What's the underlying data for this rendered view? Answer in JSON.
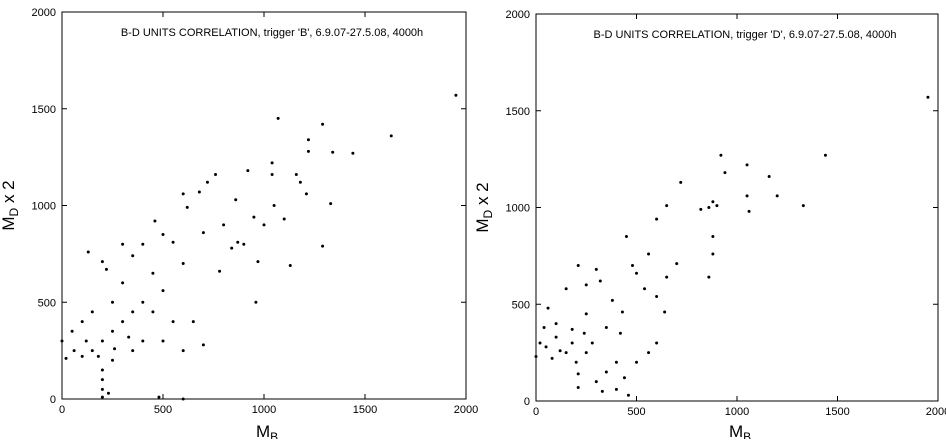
{
  "chart_data": [
    {
      "type": "scatter",
      "title": "B-D UNITS CORRELATION, trigger 'B', 6.9.07-27.5.08, 4000h",
      "xlabel": {
        "main": "M",
        "sub": "B"
      },
      "ylabel": {
        "main": "M",
        "sub": "D",
        "suffix": " x 2"
      },
      "xlim": [
        0,
        2000
      ],
      "ylim": [
        0,
        2000
      ],
      "xticks": [
        0,
        500,
        1000,
        1500,
        2000
      ],
      "yticks": [
        0,
        500,
        1000,
        1500,
        2000
      ],
      "color": "#000000",
      "series": [
        {
          "name": "trigger B",
          "x": [
            1950,
            1630,
            1440,
            1340,
            1290,
            1220,
            1220,
            1070,
            1040,
            1040,
            1160,
            1180,
            1290,
            1330,
            1130,
            960,
            970,
            920,
            860,
            760,
            720,
            680,
            600,
            620,
            870,
            700,
            550,
            460,
            500,
            400,
            350,
            300,
            200,
            130,
            220,
            300,
            450,
            500,
            600,
            650,
            700,
            400,
            250,
            150,
            100,
            50,
            0,
            20,
            100,
            150,
            200,
            250,
            300,
            200,
            200,
            200,
            200,
            230,
            250,
            350,
            400,
            500,
            600,
            480,
            600,
            60,
            120,
            180,
            260,
            330,
            1000,
            1050,
            1100,
            800,
            840,
            780,
            900,
            1210,
            950,
            550,
            450,
            350
          ],
          "y": [
            1570,
            1360,
            1270,
            1275,
            1420,
            1340,
            1280,
            1450,
            1220,
            1160,
            1160,
            1120,
            790,
            1010,
            690,
            500,
            710,
            1180,
            1030,
            1160,
            1120,
            1070,
            1060,
            990,
            810,
            860,
            810,
            920,
            850,
            800,
            740,
            800,
            710,
            760,
            670,
            600,
            650,
            560,
            700,
            400,
            280,
            500,
            500,
            450,
            400,
            350,
            300,
            210,
            220,
            250,
            300,
            350,
            400,
            150,
            100,
            50,
            10,
            30,
            200,
            250,
            300,
            300,
            250,
            10,
            0,
            250,
            300,
            220,
            260,
            320,
            900,
            1000,
            930,
            900,
            780,
            660,
            800,
            1060,
            940,
            400,
            450,
            450
          ]
        }
      ]
    },
    {
      "type": "scatter",
      "title": "B-D UNITS CORRELATION, trigger 'D', 6.9.07-27.5.08, 4000h",
      "xlabel": {
        "main": "M",
        "sub": "B"
      },
      "ylabel": {
        "main": "M",
        "sub": "D",
        "suffix": " x 2"
      },
      "xlim": [
        0,
        2000
      ],
      "ylim": [
        0,
        2000
      ],
      "xticks": [
        0,
        500,
        1000,
        1500,
        2000
      ],
      "yticks": [
        0,
        500,
        1000,
        1500,
        2000
      ],
      "color": "#000000",
      "series": [
        {
          "name": "trigger D",
          "x": [
            1950,
            1440,
            1330,
            1200,
            1160,
            1060,
            1050,
            1050,
            920,
            940,
            880,
            900,
            860,
            880,
            880,
            820,
            860,
            720,
            700,
            650,
            600,
            650,
            640,
            600,
            560,
            540,
            480,
            450,
            500,
            430,
            420,
            380,
            320,
            300,
            350,
            250,
            250,
            210,
            150,
            60,
            50,
            100,
            150,
            200,
            210,
            210,
            300,
            330,
            400,
            460,
            440,
            0,
            20,
            80,
            120,
            180,
            240,
            280,
            600,
            560,
            500,
            400,
            350,
            250,
            180,
            100,
            40
          ],
          "y": [
            1570,
            1270,
            1010,
            1060,
            1160,
            980,
            1060,
            1220,
            1270,
            1180,
            1030,
            1010,
            1000,
            850,
            760,
            990,
            640,
            1130,
            710,
            1010,
            940,
            640,
            460,
            540,
            760,
            580,
            700,
            850,
            660,
            460,
            350,
            520,
            620,
            680,
            380,
            450,
            600,
            700,
            580,
            480,
            280,
            330,
            250,
            200,
            140,
            70,
            100,
            50,
            60,
            30,
            120,
            230,
            300,
            220,
            260,
            300,
            350,
            300,
            300,
            250,
            200,
            200,
            150,
            250,
            370,
            400,
            380
          ]
        }
      ]
    }
  ]
}
